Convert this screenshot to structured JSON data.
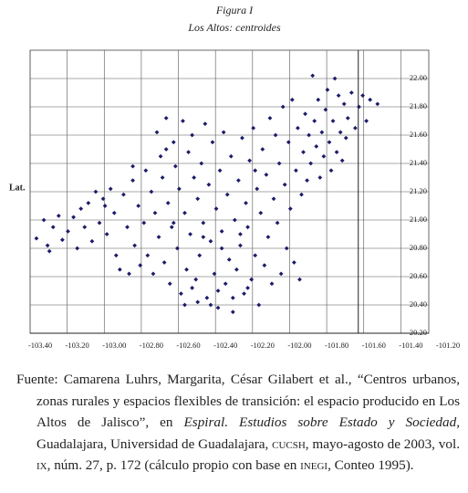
{
  "figure_label": "Figura I",
  "chart_data": {
    "type": "scatter",
    "title": "Los Altos: centroides",
    "ylabel": "Lat.",
    "color": "#1c1c6a",
    "grid": true,
    "xlim": [
      -103.4,
      -101.2
    ],
    "ylim": [
      20.2,
      22.2
    ],
    "xticks": [
      {
        "value": -103.4,
        "label": "-103.40"
      },
      {
        "value": -103.2,
        "label": "-103.20"
      },
      {
        "value": -103.0,
        "label": "-103.00"
      },
      {
        "value": -102.8,
        "label": "-102.80"
      },
      {
        "value": -102.6,
        "label": "-102.60"
      },
      {
        "value": -102.4,
        "label": "-102.40"
      },
      {
        "value": -102.2,
        "label": "-102.20"
      },
      {
        "value": -102.0,
        "label": "-102.00"
      },
      {
        "value": -101.8,
        "label": "-101.80"
      },
      {
        "value": -101.6,
        "label": "-101.60"
      },
      {
        "value": -101.4,
        "label": "-101.40"
      },
      {
        "value": -101.2,
        "label": "-101.20"
      }
    ],
    "yticks": [
      {
        "value": 20.2,
        "label": "20.20"
      },
      {
        "value": 20.4,
        "label": "20.40"
      },
      {
        "value": 20.6,
        "label": "20.60"
      },
      {
        "value": 20.8,
        "label": "20.80"
      },
      {
        "value": 21.0,
        "label": "21.00"
      },
      {
        "value": 21.2,
        "label": "21.20"
      },
      {
        "value": 21.4,
        "label": "21.40"
      },
      {
        "value": 21.6,
        "label": "21.60"
      },
      {
        "value": 21.8,
        "label": "21.80"
      },
      {
        "value": 22.0,
        "label": "22.00"
      }
    ],
    "x": [
      -103.42,
      -103.38,
      -103.36,
      -103.35,
      -103.33,
      -103.3,
      -103.28,
      -103.25,
      -103.22,
      -103.2,
      -103.18,
      -103.16,
      -103.14,
      -103.12,
      -103.1,
      -103.08,
      -103.06,
      -103.04,
      -103.02,
      -103.0,
      -102.99,
      -102.97,
      -102.95,
      -102.93,
      -102.92,
      -102.9,
      -102.89,
      -102.87,
      -102.86,
      -102.84,
      -102.83,
      -102.82,
      -102.8,
      -102.79,
      -102.78,
      -102.77,
      -102.76,
      -102.75,
      -102.74,
      -102.73,
      -102.72,
      -102.71,
      -102.7,
      -102.69,
      -102.68,
      -102.67,
      -102.66,
      -102.65,
      -102.64,
      -102.63,
      -102.62,
      -102.61,
      -102.6,
      -102.59,
      -102.58,
      -102.57,
      -102.56,
      -102.55,
      -102.54,
      -102.53,
      -102.52,
      -102.51,
      -102.5,
      -102.49,
      -102.48,
      -102.47,
      -102.46,
      -102.45,
      -102.44,
      -102.43,
      -102.42,
      -102.41,
      -102.4,
      -102.39,
      -102.38,
      -102.37,
      -102.36,
      -102.35,
      -102.34,
      -102.33,
      -102.32,
      -102.31,
      -102.3,
      -102.29,
      -102.28,
      -102.27,
      -102.26,
      -102.25,
      -102.24,
      -102.23,
      -102.22,
      -102.21,
      -102.2,
      -102.19,
      -102.18,
      -102.17,
      -102.16,
      -102.15,
      -102.14,
      -102.13,
      -102.12,
      -102.11,
      -102.1,
      -102.09,
      -102.08,
      -102.07,
      -102.06,
      -102.05,
      -102.04,
      -102.03,
      -102.02,
      -102.01,
      -102.0,
      -101.99,
      -101.98,
      -101.97,
      -101.96,
      -101.95,
      -101.94,
      -101.93,
      -101.92,
      -101.91,
      -101.9,
      -101.89,
      -101.88,
      -101.87,
      -101.86,
      -101.85,
      -101.84,
      -101.83,
      -101.82,
      -101.81,
      -101.8,
      -101.79,
      -101.78,
      -101.77,
      -101.76,
      -101.75,
      -101.74,
      -101.72,
      -101.7,
      -101.68,
      -101.66,
      -101.64,
      -101.62,
      -101.58,
      -102.62,
      -102.55,
      -102.48,
      -102.58,
      -102.44,
      -102.36,
      -102.28,
      -102.72,
      -102.68,
      -102.52,
      -102.42,
      -102.32,
      -102.24,
      -102.9,
      -103.05
    ],
    "values": [
      20.87,
      21.0,
      20.82,
      20.78,
      20.95,
      21.03,
      20.86,
      20.92,
      21.02,
      20.8,
      21.08,
      20.95,
      21.12,
      20.85,
      21.2,
      20.98,
      21.15,
      20.9,
      21.22,
      21.05,
      20.75,
      20.65,
      21.18,
      20.95,
      20.62,
      21.28,
      20.82,
      21.1,
      20.68,
      20.98,
      21.35,
      20.75,
      21.2,
      20.62,
      21.05,
      21.62,
      20.88,
      21.45,
      21.3,
      20.7,
      21.72,
      21.12,
      20.55,
      20.95,
      21.55,
      21.38,
      20.8,
      21.22,
      20.48,
      21.7,
      21.05,
      20.65,
      21.48,
      20.9,
      21.6,
      21.3,
      20.58,
      21.15,
      20.75,
      21.4,
      20.98,
      21.68,
      20.45,
      21.25,
      20.85,
      21.55,
      20.62,
      21.08,
      20.38,
      21.35,
      20.92,
      21.62,
      20.55,
      21.18,
      20.72,
      21.45,
      20.35,
      21.0,
      20.65,
      21.28,
      20.82,
      21.58,
      20.48,
      21.12,
      20.95,
      21.42,
      20.58,
      21.65,
      20.75,
      21.22,
      20.4,
      21.05,
      21.5,
      20.68,
      21.32,
      20.88,
      21.72,
      20.55,
      21.15,
      21.6,
      20.98,
      21.4,
      20.62,
      21.8,
      21.25,
      20.8,
      21.55,
      21.08,
      21.85,
      20.7,
      21.35,
      21.65,
      20.58,
      21.18,
      21.48,
      21.75,
      21.28,
      21.6,
      21.4,
      22.02,
      21.7,
      21.52,
      21.85,
      21.3,
      21.62,
      21.45,
      21.78,
      21.92,
      21.55,
      21.35,
      21.7,
      22.0,
      21.48,
      21.88,
      21.62,
      21.42,
      21.82,
      21.58,
      21.72,
      21.9,
      21.65,
      21.8,
      21.88,
      21.7,
      21.85,
      21.82,
      20.4,
      20.42,
      20.4,
      20.52,
      20.5,
      20.45,
      20.52,
      21.5,
      20.98,
      20.88,
      20.8,
      20.9,
      21.35,
      21.38,
      21.1
    ]
  },
  "footer": [
    {
      "text": "Fuente: Camarena Luhrs, Margarita, César Gilabert et al., “Centros urbanos, zonas rurales y espacios flexibles de transición: el espacio producido en Los Altos de Jalisco”, en ",
      "style": "normal"
    },
    {
      "text": "Espiral. Estudios sobre Estado y Sociedad",
      "style": "italic"
    },
    {
      "text": ", Guadalajara, Universidad de Guadalajara, ",
      "style": "normal"
    },
    {
      "text": "cucsh",
      "style": "smallcaps"
    },
    {
      "text": ", mayo-agosto de 2003, vol. ",
      "style": "normal"
    },
    {
      "text": "ix",
      "style": "smallcaps"
    },
    {
      "text": ", núm. 27, p. 172 (cálculo propio con base en ",
      "style": "normal"
    },
    {
      "text": "inegi",
      "style": "smallcaps"
    },
    {
      "text": ", Conteo 1995).",
      "style": "normal"
    }
  ]
}
